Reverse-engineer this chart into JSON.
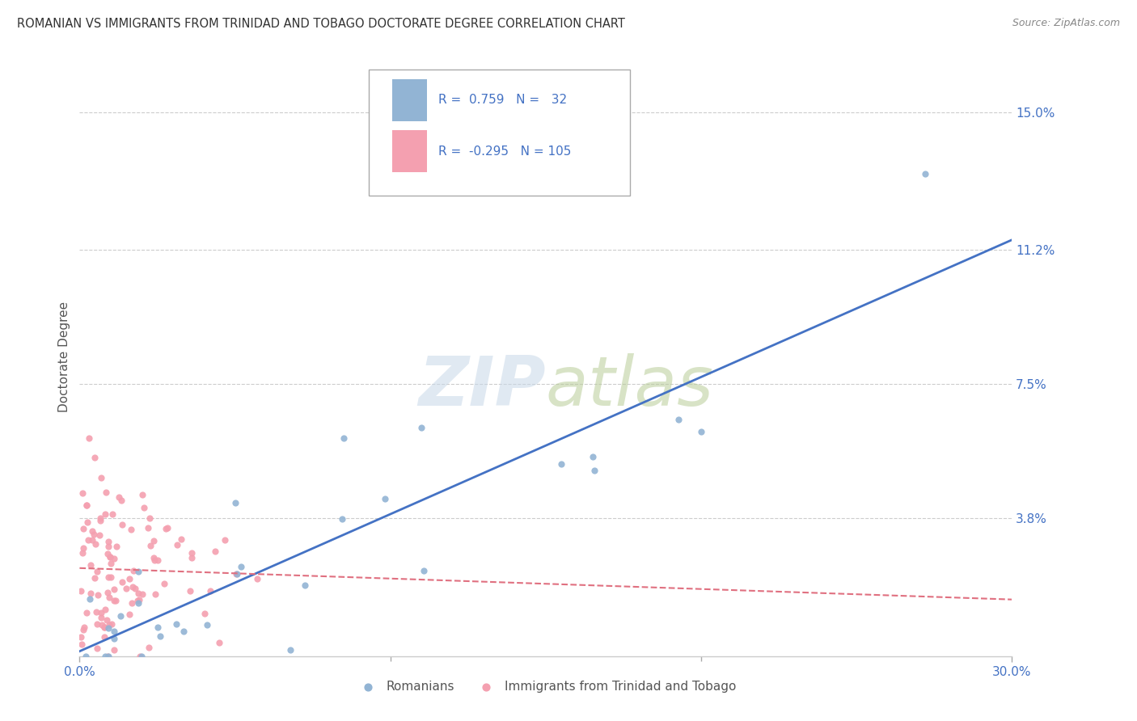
{
  "title": "ROMANIAN VS IMMIGRANTS FROM TRINIDAD AND TOBAGO DOCTORATE DEGREE CORRELATION CHART",
  "source": "Source: ZipAtlas.com",
  "ylabel": "Doctorate Degree",
  "xlim": [
    0.0,
    0.3
  ],
  "ylim": [
    0.0,
    0.165
  ],
  "xtick_labels": [
    "0.0%",
    "30.0%"
  ],
  "ytick_positions": [
    0.038,
    0.075,
    0.112,
    0.15
  ],
  "ytick_labels": [
    "3.8%",
    "7.5%",
    "11.2%",
    "15.0%"
  ],
  "blue_color": "#92b4d4",
  "pink_color": "#f4a0b0",
  "line_blue": "#4472c4",
  "line_pink": "#e07080",
  "legend_R1": "0.759",
  "legend_N1": "32",
  "legend_R2": "-0.295",
  "legend_N2": "105"
}
